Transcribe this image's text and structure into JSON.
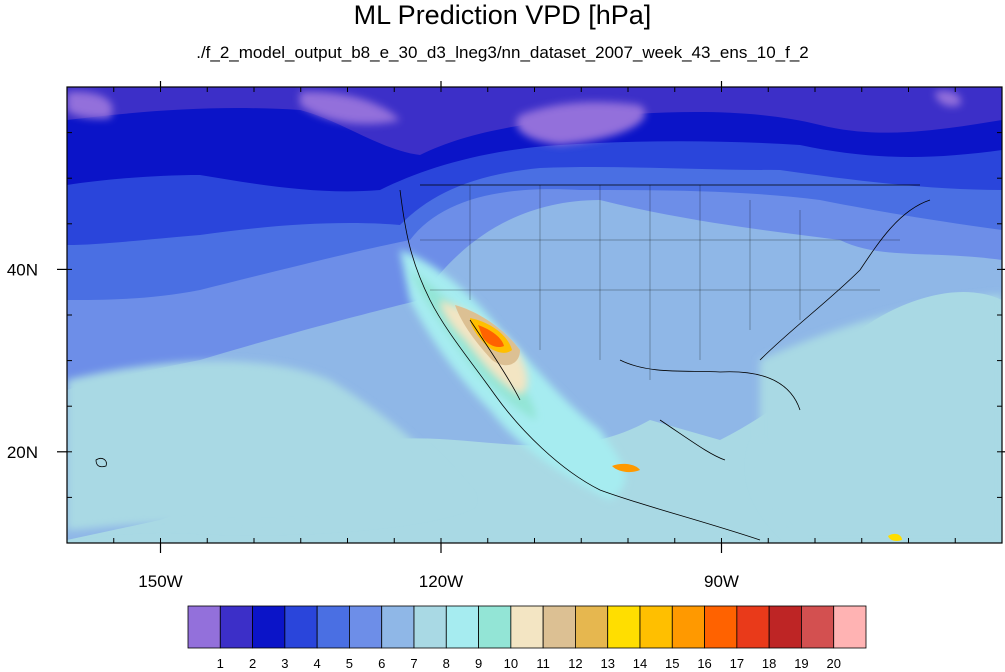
{
  "title": "ML Prediction VPD [hPa]",
  "subtitle": "./f_2_model_output_b8_e_30_d3_lneg3/nn_dataset_2007_week_43_ens_10_f_2",
  "map": {
    "lon_range": [
      -160,
      -60
    ],
    "lat_range": [
      10,
      60
    ],
    "lon_ticks": [
      {
        "value": -150,
        "label": "150W"
      },
      {
        "value": -120,
        "label": "120W"
      },
      {
        "value": -90,
        "label": "90W"
      }
    ],
    "lat_ticks": [
      {
        "value": 40,
        "label": "40N"
      },
      {
        "value": 20,
        "label": "20N"
      }
    ]
  },
  "colorbar": {
    "colors": [
      "#9370db",
      "#3c2fc8",
      "#0b14c8",
      "#2a45db",
      "#4a6fe3",
      "#6d8ee8",
      "#8fb7e7",
      "#a9d9e4",
      "#a6ecf0",
      "#93e5d6",
      "#f3e5c3",
      "#dcc093",
      "#e6b74f",
      "#ffde00",
      "#ffbf00",
      "#ff9900",
      "#ff6200",
      "#e93a1a",
      "#be2525",
      "#d35050",
      "#ffb3b3"
    ],
    "labels": [
      "1",
      "2",
      "3",
      "4",
      "5",
      "6",
      "7",
      "8",
      "9",
      "10",
      "11",
      "12",
      "13",
      "14",
      "15",
      "16",
      "17",
      "18",
      "19",
      "20"
    ]
  }
}
